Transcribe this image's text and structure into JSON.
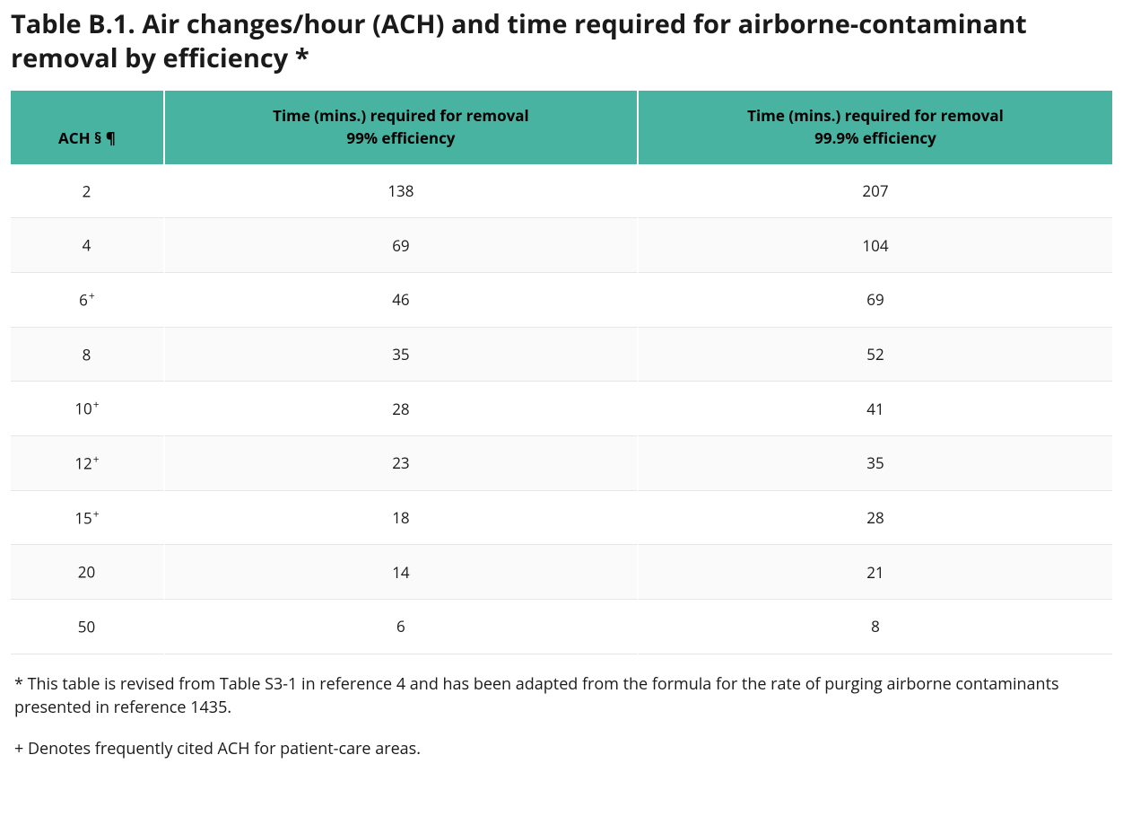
{
  "title": "Table B.1. Air changes/hour (ACH) and time required for airborne-contaminant removal by efficiency *",
  "table": {
    "header_bg": "#49b3a2",
    "header_border": "#ffffff",
    "row_border": "#e6e6e6",
    "alt_row_bg": "#fafafa",
    "text_color": "#1a1a1a",
    "columns": [
      {
        "key": "ach",
        "label": "ACH § ¶",
        "width_pct": 14,
        "align": "center"
      },
      {
        "key": "eff99",
        "label": "Time (mins.) required for removal\n99% efficiency",
        "width_pct": 43,
        "align": "center"
      },
      {
        "key": "eff999",
        "label": "Time (mins.) required for removal\n99.9% efficiency",
        "width_pct": 43,
        "align": "center"
      }
    ],
    "rows": [
      {
        "ach": "2",
        "ach_sup": "",
        "eff99": "138",
        "eff999": "207"
      },
      {
        "ach": "4",
        "ach_sup": "",
        "eff99": "69",
        "eff999": "104"
      },
      {
        "ach": "6",
        "ach_sup": "+",
        "eff99": "46",
        "eff999": "69"
      },
      {
        "ach": "8",
        "ach_sup": "",
        "eff99": "35",
        "eff999": "52"
      },
      {
        "ach": "10",
        "ach_sup": "+",
        "eff99": "28",
        "eff999": "41"
      },
      {
        "ach": "12",
        "ach_sup": "+",
        "eff99": "23",
        "eff999": "35"
      },
      {
        "ach": "15",
        "ach_sup": "+",
        "eff99": "18",
        "eff999": "28"
      },
      {
        "ach": "20",
        "ach_sup": "",
        "eff99": "14",
        "eff999": "21"
      },
      {
        "ach": "50",
        "ach_sup": "",
        "eff99": "6",
        "eff999": "8"
      }
    ],
    "font_size_header": 17,
    "font_size_body": 17,
    "cell_padding_y": 18
  },
  "footnotes": {
    "note_star": "* This table is revised from Table S3-1 in reference 4 and has been adapted from the formula for the rate of purging airborne contaminants presented in reference 1435.",
    "note_plus": "+ Denotes frequently cited ACH for patient-care areas.",
    "font_size": 18
  }
}
